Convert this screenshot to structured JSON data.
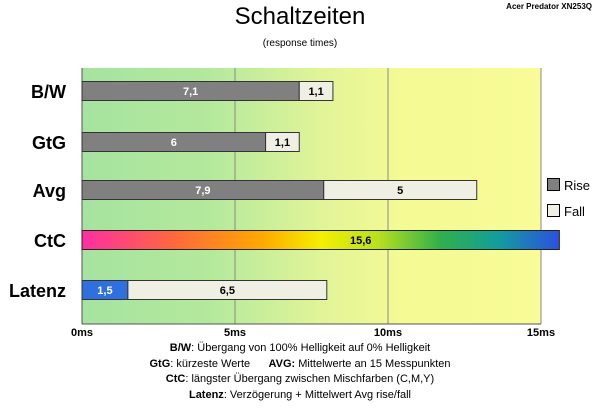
{
  "header": {
    "title": "Schaltzeiten",
    "subtitle": "(response times)",
    "model": "Acer Predator XN253Q"
  },
  "legend": [
    {
      "name": "Rise",
      "color": "#808080"
    },
    {
      "name": "Fall",
      "color": "#f0efe4"
    }
  ],
  "footnotes": [
    {
      "key": "B/W",
      "text": ":  Übergang von 100% Helligkeit auf 0% Helligkeit"
    },
    {
      "key": "GtG",
      "text": ": kürzeste  Werte",
      "key2": "AVG:",
      "text2": " Mittelwerte  an 15 Messpunkten"
    },
    {
      "key": "CtC",
      "text": ": längster Übergang  zwischen Mischfarben  (C,M,Y)"
    },
    {
      "key": "Latenz",
      "text": ": Verzögerung  + Mittelwert  Avg rise/fall"
    }
  ],
  "colors": {
    "rise": "#808080",
    "fall": "#f0efe4",
    "latency_rise": "#2f6fe0",
    "background_gradient": [
      "#a6e3a0",
      "#e4f59a",
      "#f7fb95"
    ]
  },
  "chart_data": {
    "type": "bar",
    "orientation": "horizontal",
    "stacked": true,
    "categories": [
      "B/W",
      "GtG",
      "Avg",
      "CtC",
      "Latenz"
    ],
    "series": [
      {
        "name": "Rise",
        "values": [
          7.1,
          6,
          7.9,
          null,
          1.5
        ],
        "labels": [
          "7,1",
          "6",
          "7,9",
          "",
          "1,5"
        ]
      },
      {
        "name": "Fall",
        "values": [
          1.1,
          1.1,
          5,
          null,
          6.5
        ],
        "labels": [
          "1,1",
          "1,1",
          "5",
          "",
          "6,5"
        ]
      },
      {
        "name": "",
        "values": [
          null,
          null,
          null,
          15.6,
          null
        ],
        "labels": [
          "",
          "",
          "",
          "15,6",
          ""
        ],
        "style": "rainbow"
      }
    ],
    "xlim": [
      0,
      15
    ],
    "xticks": [
      0,
      5,
      10,
      15
    ],
    "xtick_labels": [
      "0ms",
      "5ms",
      "10ms",
      "15ms"
    ],
    "grid": true,
    "legend_position": "right"
  }
}
